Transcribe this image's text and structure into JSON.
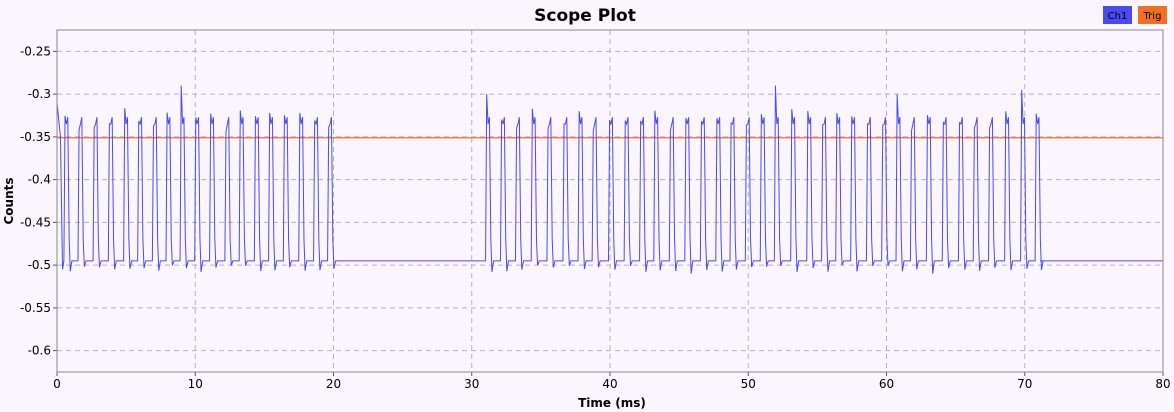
{
  "chart_data": {
    "type": "line",
    "title": "Scope Plot",
    "xlabel": "Time (ms)",
    "ylabel": "Counts",
    "xlim": [
      0,
      80
    ],
    "ylim": [
      -0.625,
      -0.225
    ],
    "x_ticks": [
      0,
      10,
      20,
      30,
      40,
      50,
      60,
      70,
      80
    ],
    "y_ticks": [
      -0.25,
      -0.3,
      -0.35,
      -0.4,
      -0.45,
      -0.5,
      -0.55,
      -0.6
    ],
    "x_tick_labels": [
      "0",
      "10",
      "20",
      "30",
      "40",
      "50",
      "60",
      "70",
      "80"
    ],
    "y_tick_labels": [
      "-0.25",
      "-0.3",
      "-0.35",
      "-0.4",
      "-0.45",
      "-0.5",
      "-0.55",
      "-0.6"
    ],
    "grid": true,
    "grid_style": "dashed",
    "legend_position": "top-right",
    "series": [
      {
        "name": "Ch1",
        "color": "#4a4af0",
        "baseline": -0.495,
        "high_level": -0.33,
        "bursts": [
          {
            "start": 0.05,
            "end": 20.5,
            "pulse_period": 1.05,
            "pulse_width": 0.4,
            "low_segments_ms": [
              [
                0.5,
                1.9
              ],
              [
                6.5,
                7.5
              ],
              [
                12.0,
                13.0
              ],
              [
                14.2,
                15.2
              ],
              [
                17.0,
                18.1
              ],
              [
                19.2,
                19.8
              ]
            ]
          },
          {
            "start": 31.0,
            "end": 71.1,
            "pulse_period": 1.1,
            "pulse_width": 0.4,
            "low_segments_ms": [
              [
                35.5,
                36.5
              ],
              [
                41.0,
                42.0
              ],
              [
                45.5,
                46.5
              ],
              [
                52.5,
                53.5
              ],
              [
                56.0,
                57.0
              ],
              [
                63.0,
                64.0
              ],
              [
                67.0,
                68.0
              ]
            ]
          }
        ],
        "spike_peaks": [
          {
            "x": 8.8,
            "y": -0.29
          },
          {
            "x": 31.2,
            "y": -0.3
          },
          {
            "x": 52.2,
            "y": -0.29
          },
          {
            "x": 69.9,
            "y": -0.295
          },
          {
            "x": 60.6,
            "y": -0.3
          }
        ],
        "dip_minima": [
          {
            "x": 11.0,
            "y": -0.508
          },
          {
            "x": 31.6,
            "y": -0.508
          },
          {
            "x": 45.7,
            "y": -0.51
          },
          {
            "x": 54.0,
            "y": -0.508
          },
          {
            "x": 63.4,
            "y": -0.51
          }
        ]
      },
      {
        "name": "Trig",
        "color": "#f07020",
        "values": [
          {
            "x": 0,
            "y": -0.351
          },
          {
            "x": 80,
            "y": -0.351
          }
        ]
      }
    ]
  }
}
